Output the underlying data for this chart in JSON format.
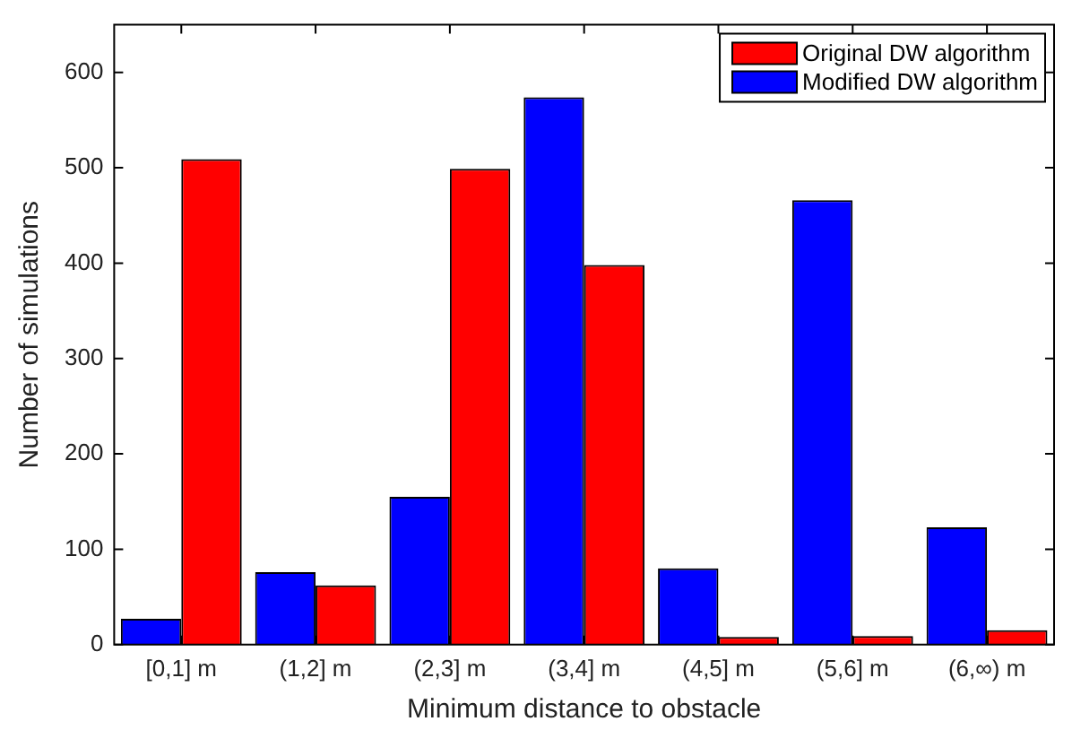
{
  "chart_data": {
    "type": "bar",
    "xlabel": "Minimum distance to obstacle",
    "ylabel": "Number of simulations",
    "categories": [
      "[0,1] m",
      "(1,2] m",
      "(2,3] m",
      "(3,4] m",
      "(4,5] m",
      "(5,6] m",
      "(6,∞) m"
    ],
    "series": [
      {
        "name": "Modified DW algorithm",
        "color": "#0000ff",
        "values": [
          27,
          76,
          155,
          574,
          80,
          466,
          123
        ]
      },
      {
        "name": "Original DW algorithm",
        "color": "#ff0000",
        "values": [
          509,
          62,
          499,
          398,
          8,
          9,
          15
        ]
      }
    ],
    "ylim": [
      0,
      650
    ],
    "yticks": [
      0,
      100,
      200,
      300,
      400,
      500,
      600
    ],
    "grid": false,
    "legend": "top right"
  }
}
